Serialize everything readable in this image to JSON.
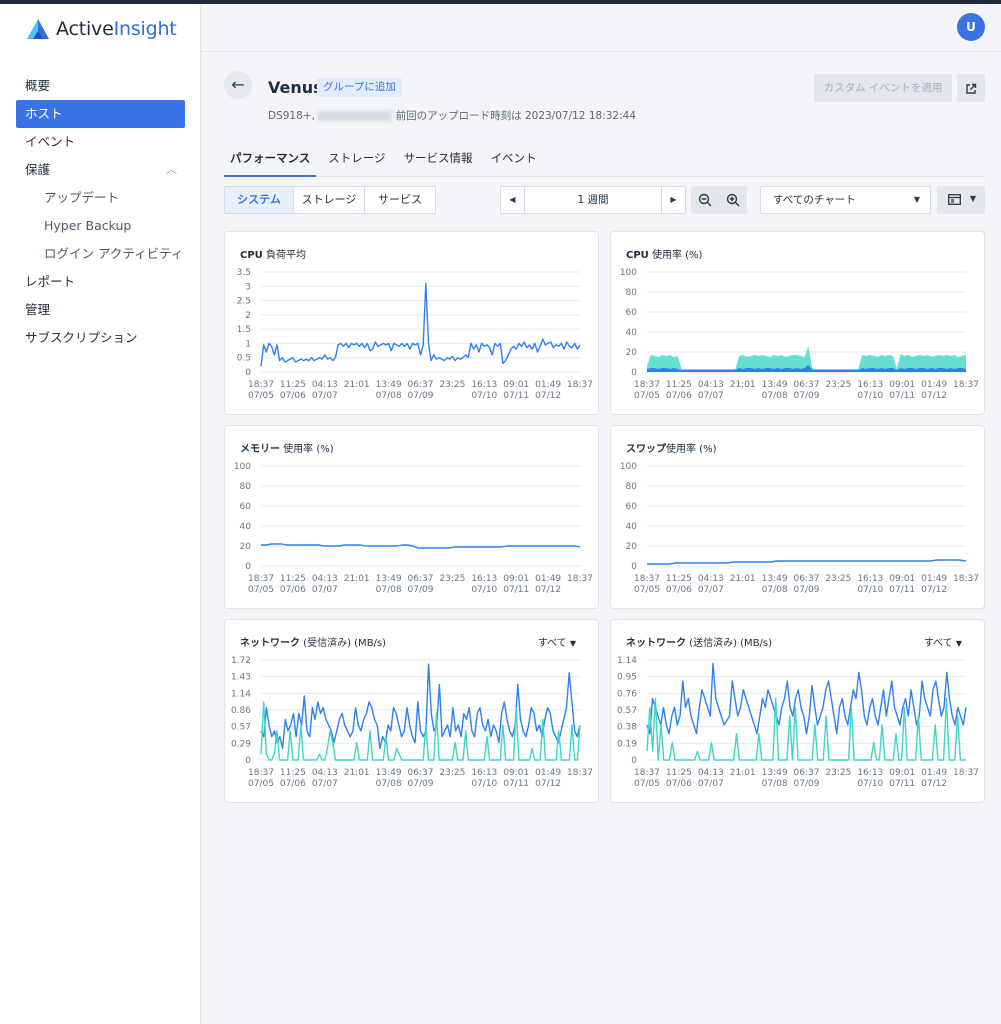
{
  "app": {
    "name_part1": "Active",
    "name_part2": "Insight"
  },
  "header": {
    "avatar_initial": "U"
  },
  "sidebar": {
    "items": [
      {
        "label": "概要"
      },
      {
        "label": "ホスト"
      },
      {
        "label": "イベント"
      },
      {
        "label": "保護"
      },
      {
        "label": "アップデート"
      },
      {
        "label": "Hyper Backup"
      },
      {
        "label": "ログイン アクティビティ"
      },
      {
        "label": "レポート"
      },
      {
        "label": "管理"
      },
      {
        "label": "サブスクリプション"
      }
    ]
  },
  "host": {
    "name": "Venus",
    "group_button": "グループに追加",
    "model": "DS918+,",
    "upload_info": "前回のアップロード時刻は 2023/07/12 18:32:44",
    "custom_event_button": "カスタム イベントを適用"
  },
  "tabs": [
    {
      "label": "パフォーマンス"
    },
    {
      "label": "ストレージ"
    },
    {
      "label": "サービス情報"
    },
    {
      "label": "イベント"
    }
  ],
  "toolbar": {
    "segments": [
      {
        "label": "システム"
      },
      {
        "label": "ストレージ"
      },
      {
        "label": "サービス"
      }
    ],
    "period": "1 週間",
    "chart_filter": "すべてのチャート"
  },
  "x_ticks": [
    {
      "time": "18:37",
      "date": "07/05"
    },
    {
      "time": "11:25",
      "date": "07/06"
    },
    {
      "time": "04:13",
      "date": "07/07"
    },
    {
      "time": "21:01",
      "date": ""
    },
    {
      "time": "13:49",
      "date": "07/08"
    },
    {
      "time": "06:37",
      "date": "07/09"
    },
    {
      "time": "23:25",
      "date": ""
    },
    {
      "time": "16:13",
      "date": "07/10"
    },
    {
      "time": "09:01",
      "date": "07/11"
    },
    {
      "time": "01:49",
      "date": "07/12"
    },
    {
      "time": "18:37",
      "date": ""
    }
  ],
  "colors": {
    "accent": "#3b73e6",
    "line_blue": "#2f80ed",
    "line_teal": "#3fd6c6",
    "area_teal": "#49d9c8"
  },
  "chart_data": [
    {
      "type": "line",
      "title_bold": "CPU",
      "title_rest": " 負荷平均",
      "y_ticks": [
        "3.5",
        "3",
        "2.5",
        "2",
        "1.5",
        "1",
        "0.5",
        "0"
      ],
      "ylim": [
        0,
        3.5
      ],
      "series": [
        {
          "values": [
            0.2,
            0.95,
            0.7,
            1.0,
            0.9,
            0.6,
            0.95,
            0.4,
            0.5,
            0.35,
            0.4,
            0.45,
            0.5,
            0.35,
            0.4,
            0.45,
            0.4,
            0.45,
            0.4,
            0.5,
            0.4,
            0.45,
            0.5,
            0.45,
            0.6,
            0.45,
            0.5,
            0.4,
            0.5,
            0.95,
            1.0,
            0.9,
            1.0,
            0.85,
            1.0,
            0.95,
            1.0,
            0.9,
            1.0,
            0.85,
            1.0,
            0.75,
            0.8,
            1.05,
            0.9,
            0.95,
            1.0,
            0.95,
            1.0,
            0.75,
            1.0,
            0.95,
            0.9,
            1.0,
            0.9,
            1.0,
            0.8,
            1.0,
            0.95,
            1.0,
            0.6,
            0.95,
            3.1,
            1.0,
            0.4,
            0.6,
            0.45,
            0.5,
            0.45,
            0.4,
            0.5,
            0.45,
            0.55,
            0.4,
            0.5,
            0.45,
            0.5,
            0.6,
            0.5,
            1.0,
            0.8,
            0.95,
            0.7,
            1.0,
            0.9,
            0.95,
            0.85,
            0.6,
            1.0,
            0.9,
            1.0,
            0.3,
            0.4,
            0.6,
            0.8,
            0.9,
            0.8,
            1.0,
            0.9,
            1.05,
            0.85,
            0.95,
            0.8,
            1.0,
            0.7,
            0.9,
            1.15,
            0.95,
            1.0,
            1.05,
            0.85,
            0.95,
            0.9,
            1.0,
            0.8,
            1.05,
            0.9,
            0.85,
            1.0,
            0.8,
            0.95
          ]
        }
      ]
    },
    {
      "type": "area",
      "title_bold": "CPU",
      "title_rest": " 使用率 (%)",
      "y_ticks": [
        "100",
        "80",
        "60",
        "40",
        "20",
        "0"
      ],
      "ylim": [
        0,
        100
      ],
      "series": [
        {
          "name": "",
          "values": [
            6,
            17,
            16,
            15,
            17,
            16,
            17,
            15,
            16,
            3,
            3,
            3,
            3,
            3,
            3,
            3,
            3,
            3,
            3,
            3,
            3,
            3,
            3,
            3,
            16,
            17,
            15,
            16,
            17,
            16,
            17,
            16,
            15,
            17,
            16,
            17,
            15,
            16,
            17,
            17,
            16,
            15,
            26,
            4,
            3,
            3,
            3,
            3,
            3,
            3,
            3,
            3,
            3,
            3,
            3,
            3,
            17,
            16,
            17,
            16,
            15,
            17,
            16,
            17,
            16,
            3,
            18,
            16,
            17,
            15,
            16,
            17,
            16,
            17,
            15,
            16,
            17,
            16,
            17,
            16,
            17,
            15,
            16,
            17
          ]
        },
        {
          "name": "",
          "values": [
            3,
            4,
            4,
            3,
            4,
            4,
            3,
            4,
            3,
            2,
            2,
            2,
            2,
            2,
            2,
            2,
            2,
            2,
            2,
            2,
            2,
            2,
            2,
            2,
            4,
            3,
            4,
            4,
            3,
            4,
            3,
            4,
            4,
            3,
            4,
            3,
            4,
            4,
            3,
            4,
            3,
            4,
            7,
            2,
            2,
            2,
            2,
            2,
            2,
            2,
            2,
            2,
            2,
            2,
            2,
            2,
            4,
            3,
            4,
            4,
            3,
            4,
            3,
            4,
            4,
            2,
            4,
            3,
            4,
            4,
            3,
            4,
            4,
            3,
            4,
            3,
            4,
            4,
            3,
            4,
            3,
            4,
            4,
            3
          ]
        }
      ]
    },
    {
      "type": "line",
      "title_bold": "メモリー",
      "title_rest": " 使用率 (%)",
      "y_ticks": [
        "100",
        "80",
        "60",
        "40",
        "20",
        "0"
      ],
      "ylim": [
        0,
        100
      ],
      "series": [
        {
          "values": [
            21,
            21,
            22,
            22,
            22,
            21,
            21,
            21,
            21,
            21,
            21,
            21,
            20,
            20,
            20,
            20,
            21,
            21,
            21,
            21,
            20,
            20,
            20,
            20,
            20,
            20,
            20,
            21,
            21,
            20,
            18,
            18,
            18,
            18,
            18,
            18,
            18,
            19,
            19,
            19,
            19,
            19,
            19,
            19,
            19,
            19,
            19,
            20,
            20,
            20,
            20,
            20,
            20,
            20,
            20,
            20,
            20,
            20,
            20,
            20,
            20,
            19
          ]
        }
      ]
    },
    {
      "type": "line",
      "title_bold": "スワップ",
      "title_rest": "使用率 (%)",
      "y_ticks": [
        "100",
        "80",
        "60",
        "40",
        "20",
        "0"
      ],
      "ylim": [
        0,
        100
      ],
      "series": [
        {
          "values": [
            2,
            2,
            2,
            2,
            3,
            3,
            3,
            3,
            3,
            3,
            3,
            3,
            4,
            4,
            4,
            4,
            4,
            4,
            5,
            5,
            5,
            5,
            5,
            5,
            5,
            5,
            5,
            5,
            5,
            5,
            5,
            5,
            5,
            5,
            5,
            5,
            5,
            5,
            5,
            5,
            6,
            6,
            6,
            6,
            5
          ]
        }
      ]
    },
    {
      "type": "line",
      "title_bold": "ネットワーク",
      "title_rest": " (受信済み) (MB/s)",
      "filter_label": "すべて",
      "y_ticks": [
        "1.72",
        "1.43",
        "1.14",
        "0.86",
        "0.57",
        "0.29",
        "0"
      ],
      "ylim": [
        0,
        1.72
      ],
      "series": [
        {
          "values": [
            0.5,
            0.4,
            0.9,
            0.6,
            0.4,
            0.5,
            0.3,
            0.4,
            0.2,
            0.7,
            0.5,
            0.6,
            0.8,
            0.4,
            0.8,
            0.6,
            1.1,
            0.5,
            0.4,
            0.9,
            0.7,
            1.0,
            0.8,
            0.9,
            0.7,
            0.6,
            0.5,
            0.3,
            0.5,
            0.7,
            0.8,
            0.6,
            0.5,
            0.4,
            0.5,
            0.9,
            0.6,
            0.5,
            0.7,
            0.8,
            1.0,
            0.9,
            0.7,
            0.6,
            0.2,
            0.4,
            0.3,
            0.6,
            0.5,
            0.9,
            0.8,
            0.6,
            0.4,
            0.5,
            0.9,
            0.6,
            0.4,
            0.3,
            1.0,
            0.5,
            0.4,
            0.5,
            1.65,
            0.8,
            0.5,
            0.6,
            1.3,
            0.4,
            0.5,
            0.6,
            0.4,
            0.9,
            0.5,
            0.6,
            0.4,
            0.8,
            0.7,
            0.9,
            0.5,
            0.4,
            0.8,
            0.9,
            0.6,
            0.5,
            0.7,
            0.4,
            0.6,
            0.5,
            0.3,
            0.8,
            1.0,
            0.7,
            0.5,
            0.4,
            0.6,
            1.3,
            0.7,
            0.5,
            0.4,
            0.6,
            0.9,
            0.8,
            0.5,
            0.6,
            0.4,
            0.7,
            0.9,
            0.8,
            0.5,
            0.4,
            0.3,
            0.5,
            0.7,
            0.9,
            1.5,
            1.0,
            0.5,
            0.4,
            0.6
          ]
        },
        {
          "values": [
            0.1,
            1.0,
            0.1,
            0,
            0,
            0.1,
            0.5,
            0,
            0,
            0,
            0,
            0.5,
            0,
            0,
            0,
            0.6,
            0,
            0,
            0,
            0,
            0,
            0,
            0.1,
            0,
            0,
            0.2,
            0.5,
            0.3,
            0,
            0,
            0,
            0,
            0,
            0,
            0,
            0,
            0.3,
            0,
            0,
            0,
            0,
            0.5,
            0,
            0,
            0,
            0,
            0,
            0.4,
            0,
            0,
            0,
            0.2,
            0.1,
            0,
            0,
            0,
            0,
            0,
            0,
            0,
            0,
            0,
            0.6,
            0,
            0,
            0,
            0.8,
            0,
            0,
            0,
            0,
            0,
            0,
            0.3,
            0,
            0,
            0,
            0.5,
            0,
            0,
            0,
            0,
            0,
            0,
            0,
            0.4,
            0,
            0,
            0,
            0,
            0,
            0.6,
            0,
            0,
            0,
            0,
            0.9,
            0,
            0,
            0,
            0,
            0,
            0.2,
            0,
            0,
            0,
            0.7,
            0,
            0,
            0,
            0,
            0,
            0.5,
            0,
            0,
            0,
            0,
            0.6,
            0,
            0,
            0.6
          ]
        }
      ]
    },
    {
      "type": "line",
      "title_bold": "ネットワーク",
      "title_rest": " (送信済み) (MB/s)",
      "filter_label": "すべて",
      "y_ticks": [
        "1.14",
        "0.95",
        "0.76",
        "0.57",
        "0.38",
        "0.19",
        "0"
      ],
      "ylim": [
        0,
        1.14
      ],
      "series": [
        {
          "values": [
            0.4,
            0.3,
            0.7,
            0.6,
            0.5,
            0.4,
            0.6,
            0.4,
            0.3,
            0.5,
            0.6,
            0.4,
            0.5,
            0.9,
            0.6,
            0.7,
            0.5,
            0.4,
            0.3,
            0.6,
            0.8,
            0.7,
            0.6,
            0.5,
            1.1,
            0.7,
            0.6,
            0.5,
            0.4,
            0.45,
            0.5,
            0.9,
            0.7,
            0.5,
            0.6,
            0.8,
            0.7,
            0.6,
            0.5,
            0.4,
            0.3,
            0.5,
            0.7,
            0.6,
            0.8,
            0.7,
            0.6,
            0.5,
            0.4,
            0.6,
            0.7,
            0.9,
            0.6,
            0.5,
            0.7,
            0.8,
            0.6,
            0.5,
            0.3,
            0.5,
            0.85,
            0.6,
            0.4,
            0.5,
            0.6,
            0.8,
            0.9,
            0.7,
            0.5,
            0.3,
            0.6,
            0.7,
            0.5,
            0.4,
            0.6,
            0.8,
            0.7,
            1.0,
            0.8,
            0.5,
            0.4,
            0.6,
            0.7,
            0.5,
            0.4,
            0.6,
            0.8,
            0.5,
            0.7,
            0.9,
            0.6,
            0.5,
            0.4,
            0.6,
            0.7,
            0.5,
            0.8,
            0.6,
            0.4,
            0.5,
            0.9,
            0.7,
            0.6,
            0.5,
            0.8,
            0.9,
            0.7,
            0.5,
            0.6,
            1.0,
            0.7,
            0.5,
            0.4,
            0.6,
            0.5,
            0.4,
            0.6
          ]
        },
        {
          "values": [
            0.1,
            0.6,
            0.1,
            0.7,
            0,
            0.4,
            0,
            0,
            0,
            0.2,
            0,
            0,
            0,
            0,
            0,
            0,
            0,
            0,
            0.1,
            0,
            0,
            0,
            0,
            0.2,
            0,
            0,
            0,
            0,
            0,
            0,
            0,
            0,
            0.3,
            0,
            0,
            0,
            0,
            0,
            0,
            0,
            0.3,
            0,
            0,
            0,
            0,
            0,
            0.7,
            0,
            0,
            0,
            0,
            0.5,
            0,
            0.6,
            0,
            0,
            0,
            0,
            0,
            0,
            0.4,
            0,
            0,
            0,
            0.5,
            0,
            0,
            0,
            0,
            0,
            0,
            0,
            0,
            0.6,
            0,
            0,
            0,
            0,
            0,
            0,
            0,
            0.2,
            0,
            0,
            0.4,
            0,
            0,
            0,
            0,
            0.3,
            0,
            0,
            0.6,
            0,
            0,
            0,
            0,
            0.5,
            0,
            0,
            0,
            0,
            0,
            0.4,
            0,
            0,
            0,
            0.7,
            0,
            0,
            0,
            0.5,
            0,
            0,
            0
          ]
        }
      ]
    }
  ]
}
